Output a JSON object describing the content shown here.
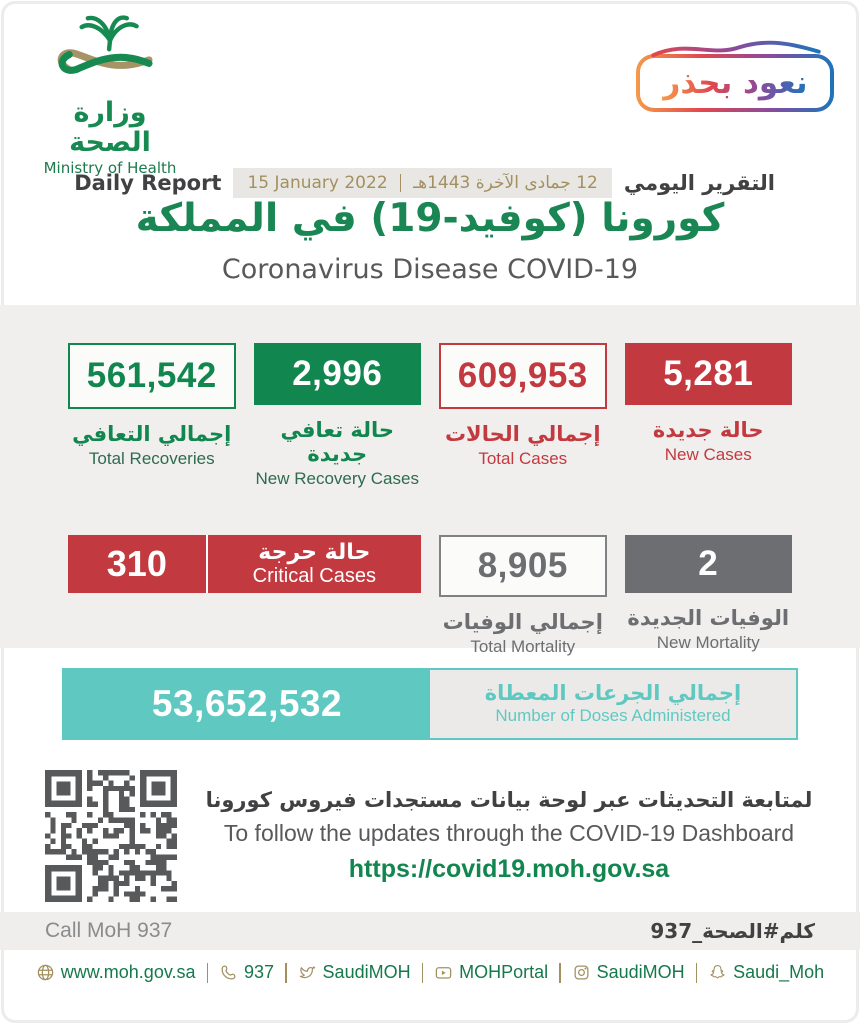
{
  "ministry": {
    "name_ar": "وزارة الصحة",
    "name_en": "Ministry of Health"
  },
  "badge": {
    "text_ar": "نعود بحذر"
  },
  "report": {
    "label_en": "Daily Report",
    "date_en": "15 January 2022",
    "date_ar": "12 جمادى الآخرة 1443هـ",
    "label_ar": "التقرير اليومي"
  },
  "title": {
    "ar": "كورونا (كوفيد-19) في المملكة",
    "en": "Coronavirus Disease COVID-19"
  },
  "stats": {
    "cards": [
      {
        "value": "561,542",
        "label_ar": "إجمالي التعافي",
        "label_en": "Total Recoveries",
        "style": "outline-green"
      },
      {
        "value": "2,996",
        "label_ar": "حالة تعافي جديدة",
        "label_en": "New Recovery Cases",
        "style": "fill-green"
      },
      {
        "value": "609,953",
        "label_ar": "إجمالي الحالات",
        "label_en": "Total Cases",
        "style": "outline-red"
      },
      {
        "value": "5,281",
        "label_ar": "حالة جديدة",
        "label_en": "New Cases",
        "style": "fill-red"
      }
    ],
    "critical": {
      "value": "310",
      "label_ar": "حالة حرجة",
      "label_en": "Critical Cases"
    },
    "total_mortality": {
      "value": "8,905",
      "label_ar": "إجمالي الوفيات",
      "label_en": "Total Mortality"
    },
    "new_mortality": {
      "value": "2",
      "label_ar": "الوفيات الجديدة",
      "label_en": "New Mortality"
    }
  },
  "doses": {
    "value": "53,652,532",
    "label_ar": "إجمالي الجرعات المعطاة",
    "label_en": "Number of Doses Administered"
  },
  "dashboard": {
    "line_ar": "لمتابعة التحديثات عبر لوحة بيانات مستجدات فيروس كورونا",
    "line_en": "To follow the updates through the COVID-19 Dashboard",
    "url": "https://covid19.moh.gov.sa"
  },
  "call_bar": {
    "en": "Call MoH 937",
    "ar": "كلم#الصحة_937"
  },
  "footer": {
    "links": [
      {
        "icon": "globe-icon",
        "label": "www.moh.gov.sa"
      },
      {
        "icon": "phone-icon",
        "label": "937"
      },
      {
        "icon": "twitter-icon",
        "label": "SaudiMOH"
      },
      {
        "icon": "youtube-icon",
        "label": "MOHPortal"
      },
      {
        "icon": "instagram-icon",
        "label": "SaudiMOH"
      },
      {
        "icon": "snapchat-icon",
        "label": "Saudi_Moh"
      }
    ]
  },
  "colors": {
    "green": "#12864f",
    "red": "#c23a40",
    "gray": "#6d6e71",
    "teal": "#5fc9c1",
    "tan": "#a29061"
  }
}
